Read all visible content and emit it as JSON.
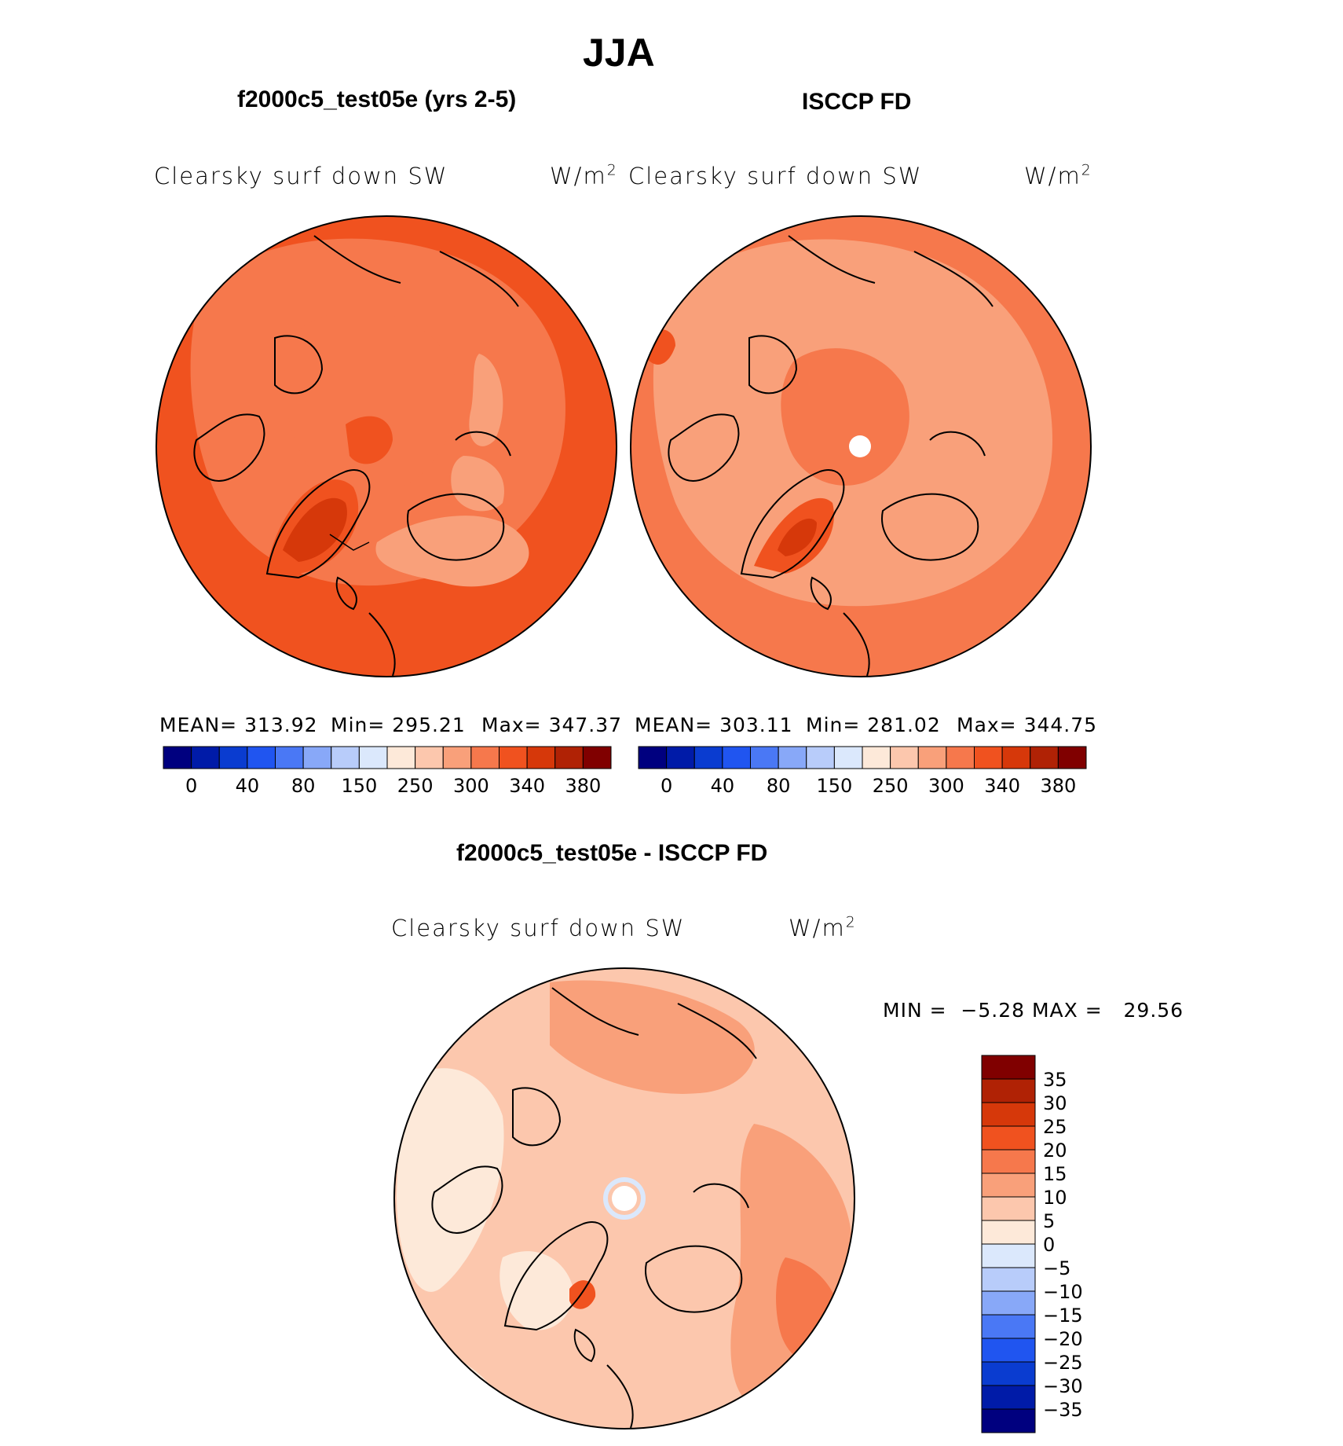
{
  "figure": {
    "season": "JJA",
    "variable_label": "Clearsky surf down SW",
    "units_base": "W/m",
    "units_exp": "2"
  },
  "panels": [
    {
      "title": "f2000c5_test05e (yrs 2-5)",
      "stats": {
        "mean": "MEAN= 313.92",
        "min": "Min= 295.21",
        "max": "Max= 347.37"
      }
    },
    {
      "title": "ISCCP FD",
      "stats": {
        "mean": "MEAN= 303.11",
        "min": "Min= 281.02",
        "max": "Max= 344.75"
      }
    },
    {
      "title": "f2000c5_test05e - ISCCP FD",
      "stats": {
        "minmax": "MIN =  −5.28 MAX =   29.56"
      }
    }
  ],
  "colorbar_abs": {
    "colors": [
      "#00007f",
      "#001ba8",
      "#0a3cd0",
      "#2055f0",
      "#4a78f5",
      "#88a8f8",
      "#b8ccfa",
      "#dbe8fc",
      "#fde9d9",
      "#fcc7ad",
      "#f9a07a",
      "#f6784c",
      "#f0521f",
      "#d6380a",
      "#b02205",
      "#800000"
    ],
    "tick_labels": [
      "0",
      "40",
      "80",
      "150",
      "250",
      "300",
      "340",
      "380"
    ],
    "tick_boundaries": [
      1,
      3,
      5,
      7,
      9,
      11,
      13,
      15
    ]
  },
  "colorbar_diff": {
    "colors": [
      "#00007f",
      "#001ba8",
      "#0a3cd0",
      "#2055f0",
      "#4a78f5",
      "#88a8f8",
      "#b8ccfa",
      "#dbe8fc",
      "#fde9d9",
      "#fcc7ad",
      "#f9a07a",
      "#f6784c",
      "#f0521f",
      "#d6380a",
      "#b02205",
      "#800000"
    ],
    "tick_labels": [
      "−35",
      "−30",
      "−25",
      "−20",
      "−15",
      "−10",
      "−5",
      "0",
      "5",
      "10",
      "15",
      "20",
      "25",
      "30",
      "35"
    ]
  }
}
